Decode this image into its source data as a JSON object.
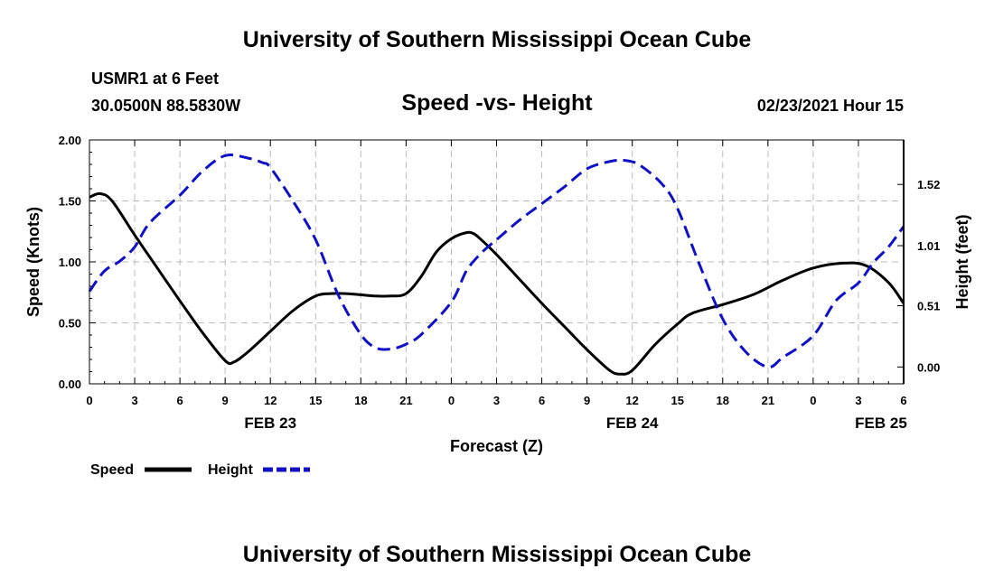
{
  "header": {
    "title_top": "University of Southern Mississippi Ocean Cube",
    "station": "USMR1 at 6 Feet",
    "coords": "30.0500N 88.5830W",
    "subtitle": "Speed -vs- Height",
    "datetime": "02/23/2021 Hour 15",
    "title_bottom": "University of Southern Mississippi Ocean Cube"
  },
  "colors": {
    "speed": "#000000",
    "height": "#1010c8",
    "grid": "#bbbbbb"
  },
  "chart_data": {
    "type": "line",
    "title": "Speed -vs- Height",
    "xlabel": "Forecast (Z)",
    "ylabel": "Speed (Knots)",
    "y2label": "Height (feet)",
    "xlim": [
      0,
      54
    ],
    "ylim": [
      0,
      2.0
    ],
    "y2lim": [
      -0.14,
      1.89
    ],
    "x_ticks": [
      0,
      3,
      6,
      9,
      12,
      15,
      18,
      21,
      24,
      27,
      30,
      33,
      36,
      39,
      42,
      45,
      48,
      51,
      54
    ],
    "x_tick_labels": [
      "0",
      "3",
      "6",
      "9",
      "12",
      "15",
      "18",
      "21",
      "0",
      "3",
      "6",
      "9",
      "12",
      "15",
      "18",
      "21",
      "0",
      "3",
      "6"
    ],
    "date_labels": [
      {
        "x": 12,
        "label": "FEB 23"
      },
      {
        "x": 36,
        "label": "FEB 24"
      },
      {
        "x": 52.5,
        "label": "FEB 25"
      }
    ],
    "y_ticks": [
      0,
      0.5,
      1.0,
      1.5,
      2.0
    ],
    "y_tick_labels": [
      "0.00",
      "0.50",
      "1.00",
      "1.50",
      "2.00"
    ],
    "y2_ticks": [
      0.0,
      0.51,
      1.01,
      1.52
    ],
    "y2_tick_labels": [
      "0.00",
      "0.51",
      "1.01",
      "1.52"
    ],
    "grid": true,
    "legend_position": "bottom-left",
    "series": [
      {
        "name": "Speed",
        "axis": "left",
        "style": "solid",
        "x": [
          0,
          0.7,
          1.5,
          3,
          4.5,
          6,
          7.5,
          9,
          9.6,
          10.5,
          12,
          13.5,
          15,
          16,
          17,
          18,
          19,
          20,
          21,
          22,
          23,
          24,
          25,
          25.5,
          26,
          27,
          28.5,
          30,
          31.5,
          33,
          34.5,
          35.2,
          36,
          37.5,
          39,
          40,
          42,
          44,
          46,
          48,
          50,
          51.5,
          53,
          54
        ],
        "values": [
          1.53,
          1.56,
          1.5,
          1.22,
          0.95,
          0.68,
          0.42,
          0.19,
          0.18,
          0.26,
          0.43,
          0.6,
          0.72,
          0.74,
          0.74,
          0.73,
          0.72,
          0.72,
          0.74,
          0.88,
          1.08,
          1.19,
          1.24,
          1.23,
          1.18,
          1.06,
          0.86,
          0.66,
          0.47,
          0.28,
          0.11,
          0.08,
          0.11,
          0.32,
          0.49,
          0.58,
          0.65,
          0.73,
          0.85,
          0.95,
          0.99,
          0.97,
          0.83,
          0.66
        ]
      },
      {
        "name": "Height",
        "axis": "right",
        "style": "dashed",
        "x": [
          0,
          1,
          2,
          3,
          4,
          6,
          7.5,
          9,
          10.5,
          11.5,
          12,
          13.5,
          15,
          16.5,
          18,
          19,
          20,
          21,
          22,
          24,
          25,
          26,
          27,
          28.5,
          30,
          31.5,
          33,
          34.5,
          35.5,
          36.5,
          38,
          39,
          40.5,
          42,
          43.5,
          45,
          46,
          48,
          49.5,
          51,
          52,
          53,
          54
        ],
        "values": [
          0.63,
          0.8,
          0.88,
          1.0,
          1.2,
          1.43,
          1.63,
          1.76,
          1.74,
          1.7,
          1.66,
          1.38,
          1.06,
          0.6,
          0.27,
          0.16,
          0.15,
          0.19,
          0.27,
          0.54,
          0.8,
          0.95,
          1.06,
          1.22,
          1.36,
          1.5,
          1.65,
          1.71,
          1.72,
          1.68,
          1.52,
          1.32,
          0.84,
          0.4,
          0.13,
          0.0,
          0.08,
          0.26,
          0.55,
          0.7,
          0.87,
          1.0,
          1.17
        ]
      }
    ]
  }
}
